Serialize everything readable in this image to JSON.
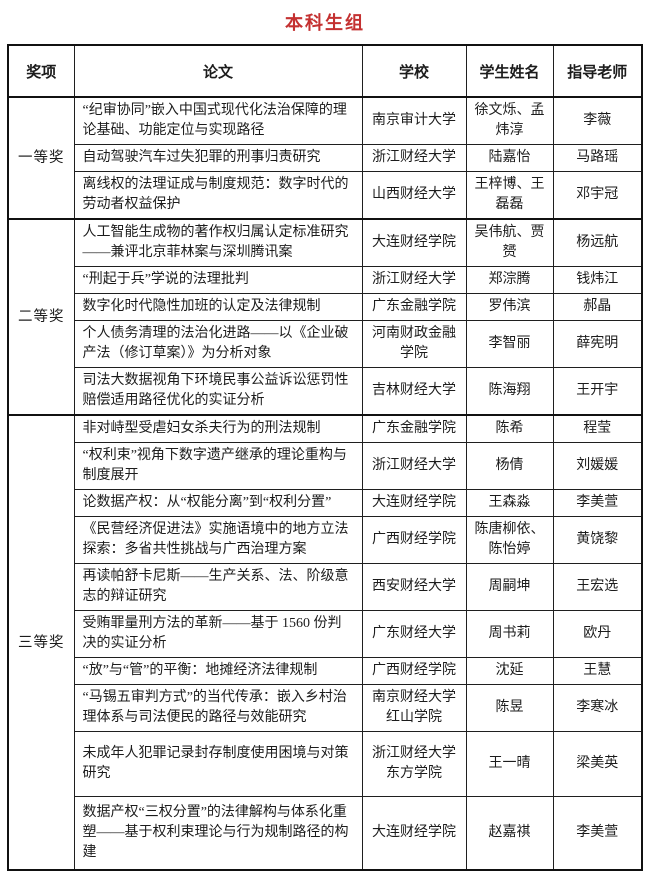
{
  "title": "本科生组",
  "title_color": "#c43131",
  "table": {
    "headers": [
      "奖项",
      "论文",
      "学校",
      "学生姓名",
      "指导老师"
    ],
    "groups": [
      {
        "award": "一等奖",
        "rows": [
          {
            "paper": "“纪审协同”嵌入中国式现代化法治保障的理论基础、功能定位与实现路径",
            "school": "南京审计大学",
            "students": "徐文烁、孟炜淳",
            "advisor": "李薇"
          },
          {
            "paper": "自动驾驶汽车过失犯罪的刑事归责研究",
            "school": "浙江财经大学",
            "students": "陆嘉怡",
            "advisor": "马路瑶"
          },
          {
            "paper": "离线权的法理证成与制度规范：数字时代的劳动者权益保护",
            "school": "山西财经大学",
            "students": "王梓博、王磊磊",
            "advisor": "邓宇冠"
          }
        ]
      },
      {
        "award": "二等奖",
        "rows": [
          {
            "paper": "人工智能生成物的著作权归属认定标准研究——兼评北京菲林案与深圳腾讯案",
            "school": "大连财经学院",
            "students": "吴伟航、贾赟",
            "advisor": "杨远航"
          },
          {
            "paper": "“刑起于兵”学说的法理批判",
            "school": "浙江财经大学",
            "students": "郑淙腾",
            "advisor": "钱炜江"
          },
          {
            "paper": "数字化时代隐性加班的认定及法律规制",
            "school": "广东金融学院",
            "students": "罗伟滨",
            "advisor": "郝晶"
          },
          {
            "paper": "个人债务清理的法治化进路——以《企业破产法（修订草案）》为分析对象",
            "school": "河南财政金融学院",
            "students": "李智丽",
            "advisor": "薛宪明"
          },
          {
            "paper": "司法大数据视角下环境民事公益诉讼惩罚性赔偿适用路径优化的实证分析",
            "school": "吉林财经大学",
            "students": "陈海翔",
            "advisor": "王开宇"
          }
        ]
      },
      {
        "award": "三等奖",
        "rows": [
          {
            "paper": "非对峙型受虐妇女杀夫行为的刑法规制",
            "school": "广东金融学院",
            "students": "陈希",
            "advisor": "程莹"
          },
          {
            "paper": "“权利束”视角下数字遗产继承的理论重构与制度展开",
            "school": "浙江财经大学",
            "students": "杨倩",
            "advisor": "刘媛媛"
          },
          {
            "paper": "论数据产权：从“权能分离”到“权利分置”",
            "school": "大连财经学院",
            "students": "王森淼",
            "advisor": "李美萱"
          },
          {
            "paper": "《民营经济促进法》实施语境中的地方立法探索：多省共性挑战与广西治理方案",
            "school": "广西财经学院",
            "students": "陈唐柳依、陈怡婷",
            "advisor": "黄饶黎"
          },
          {
            "paper": "再读帕舒卡尼斯——生产关系、法、阶级意志的辩证研究",
            "school": "西安财经大学",
            "students": "周嗣坤",
            "advisor": "王宏选"
          },
          {
            "paper": "受贿罪量刑方法的革新——基于 1560 份判决的实证分析",
            "school": "广东财经大学",
            "students": "周书莉",
            "advisor": "欧丹"
          },
          {
            "paper": "“放”与“管”的平衡：地摊经济法律规制",
            "school": "广西财经学院",
            "students": "沈延",
            "advisor": "王慧"
          },
          {
            "paper": "“马锡五审判方式”的当代传承：嵌入乡村治理体系与司法便民的路径与效能研究",
            "school": "南京财经大学红山学院",
            "students": "陈昱",
            "advisor": "李寒冰"
          },
          {
            "paper": "未成年人犯罪记录封存制度使用困境与对策研究",
            "school": "浙江财经大学东方学院",
            "students": "王一晴",
            "advisor": "梁美英"
          },
          {
            "paper": "数据产权“三权分置”的法律解构与体系化重塑——基于权利束理论与行为规制路径的构建",
            "school": "大连财经学院",
            "students": "赵嘉祺",
            "advisor": "李美萱"
          }
        ]
      }
    ]
  }
}
